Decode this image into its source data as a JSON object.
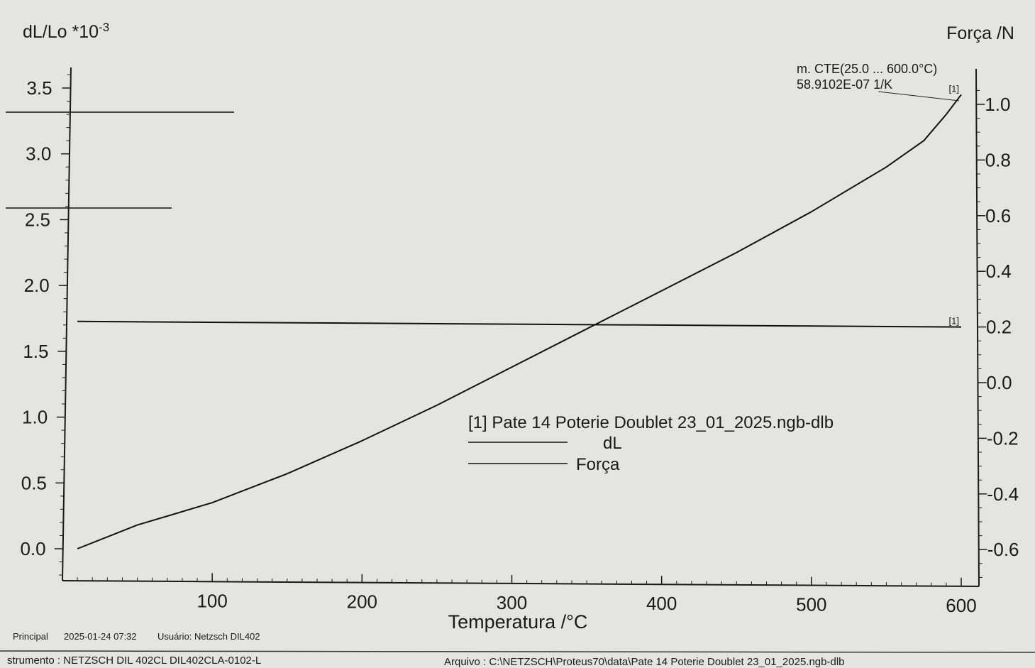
{
  "chart_data": {
    "type": "line",
    "title": "",
    "xlabel": "Temperatura /°C",
    "ylabel_left": {
      "base": "dL/Lo *10",
      "exp": "-3"
    },
    "ylabel_right": "Força /N",
    "xlim": [
      0,
      600
    ],
    "ylim_left": [
      -0.25,
      3.75
    ],
    "ylim_right": [
      -0.7,
      1.1
    ],
    "x_ticks": [
      "100",
      "200",
      "300",
      "400",
      "500",
      "600"
    ],
    "y_left_ticks": [
      "0.0",
      "0.5",
      "1.0",
      "1.5",
      "2.0",
      "2.5",
      "3.0",
      "3.5"
    ],
    "y_right_ticks": [
      "-0.6",
      "-0.4",
      "-0.2",
      "0.0",
      "0.2",
      "0.4",
      "0.6",
      "0.8",
      "1.0"
    ],
    "series": [
      {
        "name": "dL",
        "axis": "left",
        "x": [
          10,
          50,
          100,
          150,
          200,
          250,
          300,
          350,
          400,
          450,
          500,
          550,
          575,
          590,
          600
        ],
        "y": [
          0.0,
          0.18,
          0.35,
          0.57,
          0.82,
          1.09,
          1.38,
          1.67,
          1.96,
          2.25,
          2.56,
          2.9,
          3.1,
          3.3,
          3.45
        ]
      },
      {
        "name": "Força",
        "axis": "right",
        "x": [
          10,
          600
        ],
        "y": [
          0.22,
          0.2
        ]
      }
    ],
    "series_marker_labels": [
      "[1]",
      "[1]"
    ],
    "legend": {
      "placement": "center",
      "title": "[1]  Pate 14  Poterie Doublet  23_01_2025.ngb-dlb"
    },
    "annotation": {
      "line1": "m. CTE(25.0 ... 600.0°C)",
      "line2": "58.9102E-07 1/K"
    }
  },
  "footer": {
    "principal": "Principal",
    "date": "2025-01-24 07:32",
    "user": "Usuário: Netzsch DIL402",
    "instrument": "strumento :  NETZSCH DIL 402CL DIL402CLA-0102-L",
    "file": "Arquivo :  C:\\NETZSCH\\Proteus70\\data\\Pate 14  Poterie Doublet  23_01_2025.ngb-dlb"
  }
}
